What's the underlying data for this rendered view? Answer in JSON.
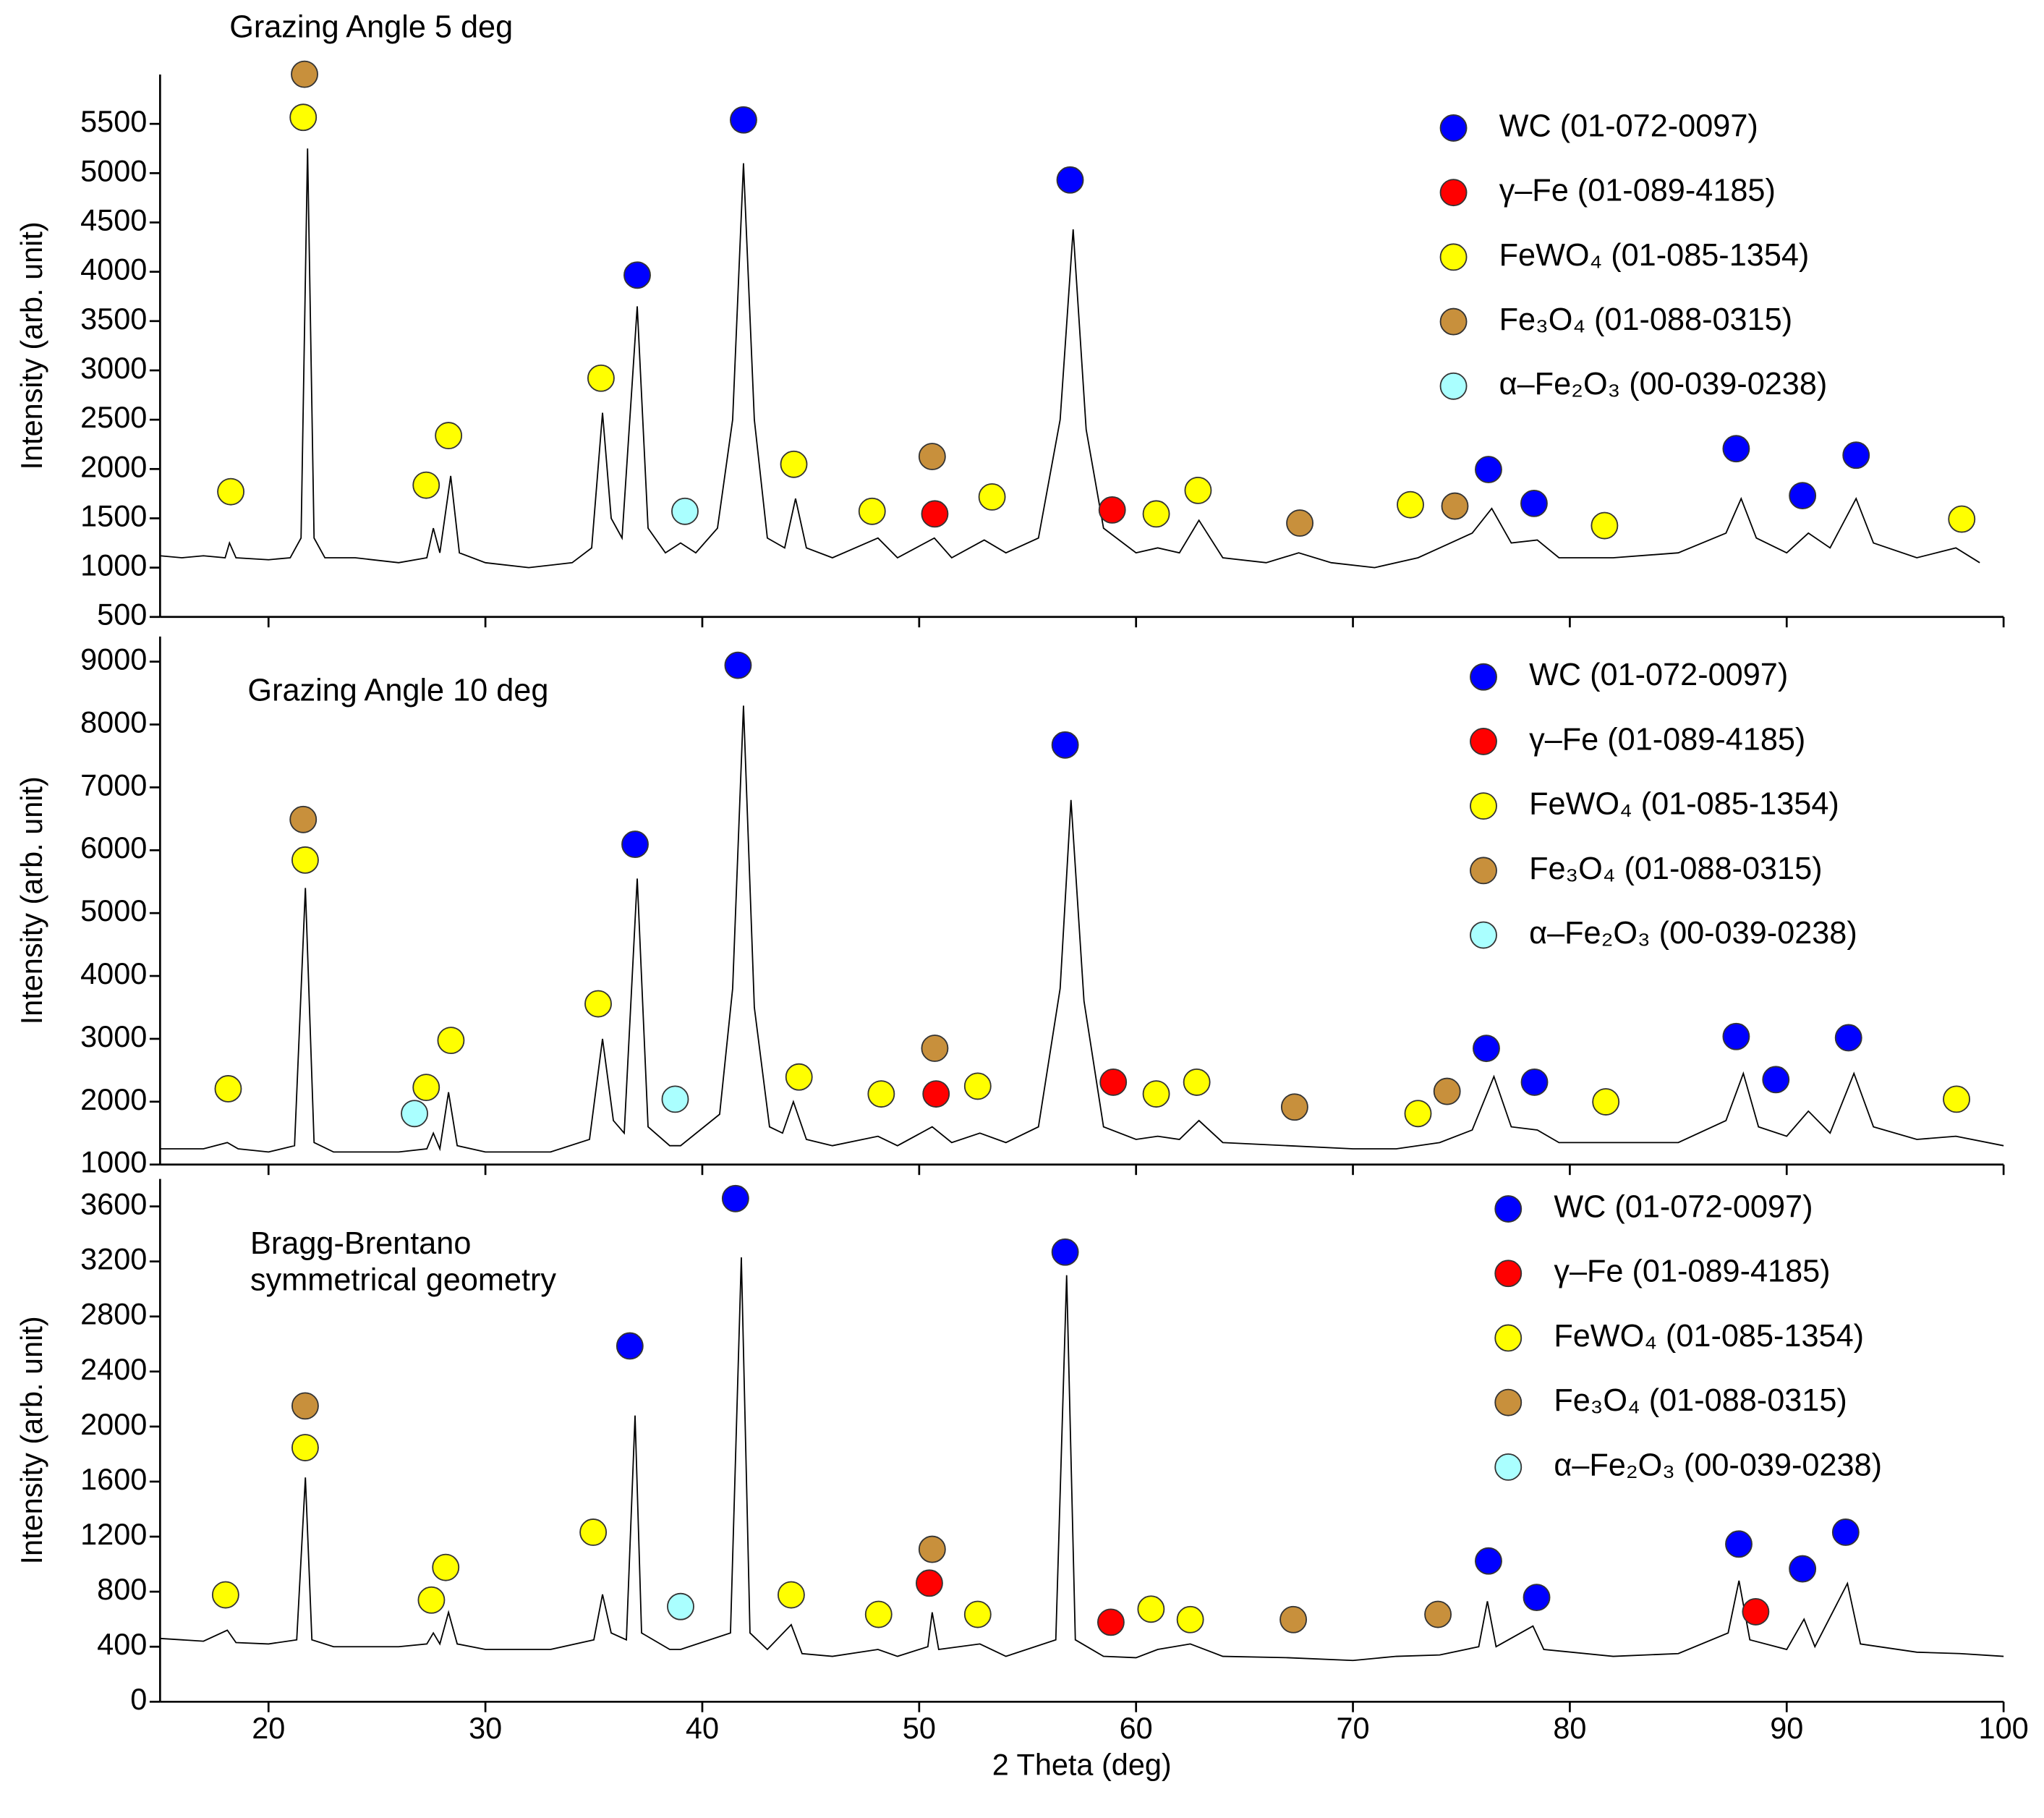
{
  "chart_data": [
    {
      "type": "line",
      "title": "Grazing Angle 5 deg",
      "y_label": "Intensity (arb. unit)",
      "color": "#000000",
      "xlim": [
        15,
        100
      ],
      "ylim": [
        500,
        6000
      ],
      "xticks": [
        20,
        30,
        40,
        50,
        60,
        70,
        80,
        90,
        100
      ],
      "yticks": [
        500,
        1000,
        1500,
        2000,
        2500,
        3000,
        3500,
        4000,
        4500,
        5000,
        5500
      ],
      "legend": "upper right",
      "x": [
        15,
        16,
        17,
        18,
        18.2,
        18.5,
        20,
        21,
        21.5,
        21.8,
        22.1,
        22.6,
        24,
        26,
        27.3,
        27.6,
        27.9,
        28.4,
        28.8,
        30,
        32,
        34,
        34.9,
        35.4,
        35.8,
        36.3,
        37.0,
        37.5,
        38.3,
        39.0,
        39.7,
        40.7,
        41.4,
        41.9,
        42.4,
        43.0,
        43.8,
        44.3,
        44.8,
        46,
        48.1,
        49,
        50.7,
        51.5,
        53,
        54,
        55.5,
        56.5,
        57.1,
        57.7,
        58.5,
        60,
        61,
        62,
        62.9,
        64,
        66,
        67.5,
        69,
        71,
        73,
        74.5,
        75.5,
        76.4,
        77.3,
        78.5,
        79.5,
        82,
        85,
        87.2,
        87.9,
        88.6,
        90,
        91,
        92,
        93.2,
        94,
        96,
        97.8,
        98.9
      ],
      "values": [
        1120,
        1100,
        1120,
        1100,
        1250,
        1100,
        1080,
        1100,
        1300,
        5250,
        1300,
        1100,
        1100,
        1050,
        1100,
        1400,
        1150,
        1930,
        1150,
        1050,
        1000,
        1050,
        1200,
        2570,
        1500,
        1300,
        3650,
        1400,
        1150,
        1250,
        1150,
        1400,
        2500,
        5100,
        2500,
        1300,
        1200,
        1700,
        1200,
        1100,
        1300,
        1100,
        1300,
        1100,
        1280,
        1150,
        1300,
        2500,
        4430,
        2400,
        1400,
        1150,
        1200,
        1150,
        1480,
        1100,
        1050,
        1150,
        1050,
        1000,
        1100,
        1250,
        1350,
        1600,
        1250,
        1280,
        1100,
        1100,
        1150,
        1350,
        1700,
        1300,
        1150,
        1350,
        1200,
        1700,
        1250,
        1100,
        1200,
        1050
      ],
      "markers": [
        {
          "name": "WC (01-072-0097)",
          "color": "#0000ff",
          "x": [
            41.9,
            37.0,
            56.96,
            76.25,
            78.35,
            87.67,
            90.73,
            93.2
          ],
          "values": [
            5540,
            3966,
            4931,
            1995,
            1651,
            2206,
            1730,
            2140
          ]
        },
        {
          "name": "γ–Fe (01-089-4185)",
          "color": "#ff0000",
          "x": [
            50.72,
            58.9
          ],
          "values": [
            1545,
            1585
          ]
        },
        {
          "name": "FeWO₄ (01-085-1354)",
          "color": "#ffff00",
          "x": [
            18.26,
            21.6,
            27.27,
            28.3,
            35.33,
            44.22,
            47.83,
            53.36,
            60.93,
            62.86,
            72.65,
            81.6,
            98.07
          ],
          "values": [
            1770,
            5566,
            1836,
            2339,
            2921,
            2048,
            1571,
            1717,
            1545,
            1783,
            1638,
            1426,
            1492
          ]
        },
        {
          "name": "Fe₃O₄ (01-088-0315)",
          "color": "#c8903c",
          "x": [
            21.66,
            50.6,
            67.55,
            74.7
          ],
          "values": [
            6003,
            2127,
            1452,
            1624
          ]
        },
        {
          "name": "α–Fe₂O₃ (00-039-0238)",
          "color": "#aaffff",
          "x": [
            39.2
          ],
          "values": [
            1571
          ]
        }
      ]
    },
    {
      "type": "line",
      "title": "Grazing Angle 10 deg",
      "y_label": "Intensity (arb. unit)",
      "color": "#000000",
      "xlim": [
        15,
        100
      ],
      "ylim": [
        1000,
        9400
      ],
      "xticks": [
        20,
        30,
        40,
        50,
        60,
        70,
        80,
        90,
        100
      ],
      "yticks": [
        1000,
        2000,
        3000,
        4000,
        5000,
        6000,
        7000,
        8000,
        9000
      ],
      "legend": "upper right",
      "x": [
        15,
        17,
        18.1,
        18.6,
        20,
        21.2,
        21.7,
        22.1,
        23,
        26,
        27.3,
        27.6,
        27.9,
        28.3,
        28.7,
        30,
        33,
        34.8,
        35.4,
        35.9,
        36.4,
        37.0,
        37.5,
        38.5,
        39.0,
        40.8,
        41.4,
        41.9,
        42.4,
        43.1,
        43.7,
        44.2,
        44.8,
        46,
        48.1,
        49,
        50.6,
        51.5,
        52.8,
        54,
        55.5,
        56.5,
        57.0,
        57.6,
        58.5,
        60,
        61,
        62,
        62.9,
        64,
        67,
        70,
        72,
        74,
        75.5,
        76.5,
        77.3,
        78.5,
        79.5,
        82,
        85,
        87.2,
        88.0,
        88.7,
        90,
        91,
        92,
        93.1,
        94,
        96,
        97.8,
        100
      ],
      "values": [
        1250,
        1250,
        1350,
        1250,
        1200,
        1300,
        5400,
        1350,
        1200,
        1200,
        1250,
        1500,
        1250,
        2150,
        1300,
        1200,
        1200,
        1400,
        3000,
        1700,
        1500,
        5550,
        1600,
        1300,
        1300,
        1800,
        3800,
        8300,
        3500,
        1600,
        1500,
        2000,
        1400,
        1300,
        1450,
        1300,
        1600,
        1350,
        1500,
        1350,
        1600,
        3800,
        6800,
        3600,
        1600,
        1400,
        1450,
        1400,
        1700,
        1350,
        1300,
        1250,
        1250,
        1350,
        1550,
        2400,
        1600,
        1550,
        1350,
        1350,
        1350,
        1700,
        2450,
        1600,
        1450,
        1850,
        1500,
        2450,
        1600,
        1400,
        1450,
        1300
      ],
      "markers": [
        {
          "name": "WC (01-072-0097)",
          "color": "#0000ff",
          "x": [
            41.65,
            36.9,
            56.73,
            76.15,
            78.37,
            87.67,
            89.5,
            92.85
          ],
          "values": [
            8942,
            6094,
            7674,
            2848,
            2310,
            3037,
            2351,
            3017
          ]
        },
        {
          "name": "γ–Fe (01-089-4185)",
          "color": "#ff0000",
          "x": [
            50.78,
            58.95
          ],
          "values": [
            2123,
            2310
          ]
        },
        {
          "name": "FeWO₄ (01-085-1354)",
          "color": "#ffff00",
          "x": [
            18.14,
            21.69,
            27.27,
            28.41,
            35.2,
            44.46,
            48.25,
            52.7,
            60.93,
            62.8,
            73.0,
            81.66,
            97.83
          ],
          "values": [
            2206,
            5844,
            2227,
            2975,
            3557,
            2393,
            2123,
            2247,
            2123,
            2310,
            1811,
            1998,
            2040
          ]
        },
        {
          "name": "Fe₃O₄ (01-088-0315)",
          "color": "#c8903c",
          "x": [
            21.6,
            50.72,
            67.31,
            74.34
          ],
          "values": [
            6489,
            2850,
            1915,
            2164
          ]
        },
        {
          "name": "α–Fe₂O₃ (00-039-0238)",
          "color": "#aaffff",
          "x": [
            26.73,
            38.75
          ],
          "values": [
            1811,
            2040
          ]
        }
      ]
    },
    {
      "type": "line",
      "title": [
        "Bragg-Brentano",
        "symmetrical geometry"
      ],
      "y_label": "Intensity (arb. unit)",
      "x_label": "2 Theta (deg)",
      "color": "#000000",
      "xlim": [
        15,
        100
      ],
      "ylim": [
        0,
        3800
      ],
      "xticks": [
        20,
        30,
        40,
        50,
        60,
        70,
        80,
        90,
        100
      ],
      "yticks": [
        0,
        400,
        800,
        1200,
        1600,
        2000,
        2400,
        2800,
        3200,
        3600
      ],
      "legend": "upper right",
      "x": [
        15,
        17,
        18.1,
        18.5,
        20,
        21.3,
        21.7,
        22.0,
        23,
        26,
        27.3,
        27.6,
        27.9,
        28.3,
        28.7,
        30,
        33,
        35.0,
        35.4,
        35.8,
        36.5,
        36.9,
        37.2,
        38.5,
        39,
        41.3,
        41.8,
        42.2,
        43,
        44.1,
        44.6,
        46,
        48.1,
        49,
        50.4,
        50.6,
        50.9,
        52.8,
        54,
        56.3,
        56.8,
        57.2,
        58.5,
        60,
        61,
        62.5,
        64,
        67,
        70,
        72,
        74,
        75.8,
        76.2,
        76.6,
        78.3,
        78.8,
        82,
        85,
        87.3,
        87.8,
        88.3,
        90,
        90.8,
        91.3,
        92.8,
        93.4,
        96,
        98,
        100
      ],
      "values": [
        460,
        440,
        520,
        430,
        420,
        450,
        1630,
        450,
        400,
        400,
        420,
        500,
        420,
        650,
        420,
        380,
        380,
        450,
        780,
        500,
        450,
        2080,
        500,
        380,
        380,
        500,
        3230,
        500,
        380,
        560,
        350,
        330,
        380,
        330,
        400,
        650,
        380,
        420,
        330,
        450,
        3100,
        450,
        330,
        320,
        380,
        420,
        330,
        320,
        300,
        330,
        340,
        400,
        730,
        400,
        550,
        380,
        330,
        350,
        500,
        880,
        450,
        380,
        600,
        400,
        860,
        420,
        360,
        350,
        330
      ],
      "markers": [
        {
          "name": "WC (01-072-0097)",
          "color": "#0000ff",
          "x": [
            41.53,
            36.66,
            56.73,
            76.25,
            78.47,
            87.79,
            90.73,
            92.72
          ],
          "values": [
            3657,
            2586,
            3268,
            1023,
            758,
            1146,
            966,
            1232
          ]
        },
        {
          "name": "γ–Fe (01-089-4185)",
          "color": "#ff0000",
          "x": [
            50.47,
            58.84,
            88.57
          ],
          "values": [
            862,
            578,
            654
          ]
        },
        {
          "name": "FeWO₄ (01-085-1354)",
          "color": "#ffff00",
          "x": [
            18.02,
            21.69,
            27.51,
            28.17,
            34.97,
            44.1,
            48.13,
            52.7,
            60.69,
            62.5
          ],
          "values": [
            777,
            1847,
            739,
            976,
            1232,
            777,
            635,
            635,
            673,
            597
          ]
        },
        {
          "name": "Fe₃O₄ (01-088-0315)",
          "color": "#c8903c",
          "x": [
            21.69,
            50.6,
            67.25,
            73.92
          ],
          "values": [
            2150,
            1108,
            597,
            635
          ]
        },
        {
          "name": "α–Fe₂O₃ (00-039-0238)",
          "color": "#aaffff",
          "x": [
            39.0
          ],
          "values": [
            692
          ]
        }
      ]
    }
  ]
}
